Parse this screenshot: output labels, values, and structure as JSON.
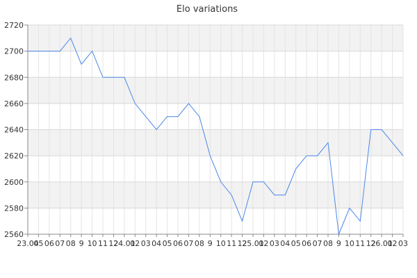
{
  "chart_data": {
    "type": "line",
    "title": "Elo variations",
    "xlabel": "",
    "ylabel": "",
    "ylim": [
      2560,
      2720
    ],
    "y_ticks": [
      2560,
      2580,
      2600,
      2620,
      2640,
      2660,
      2680,
      2700,
      2720
    ],
    "x_tick_labels": [
      "23.04",
      "05",
      "06",
      "07",
      "08",
      "9",
      "10",
      "11",
      "12",
      "24.01",
      "02",
      "03",
      "04",
      "05",
      "06",
      "07",
      "08",
      "9",
      "10",
      "11",
      "12",
      "25.01",
      "02",
      "03",
      "04",
      "05",
      "06",
      "07",
      "08",
      "9",
      "10",
      "11",
      "12",
      "26.01",
      "02",
      "03"
    ],
    "grid": true,
    "banded_background": true,
    "series": [
      {
        "color": "#4a86e8",
        "values": [
          2700,
          2700,
          2700,
          2700,
          2710,
          2690,
          2700,
          2680,
          2680,
          2680,
          2660,
          2650,
          2640,
          2650,
          2650,
          2660,
          2650,
          2620,
          2600,
          2590,
          2570,
          2600,
          2600,
          2590,
          2590,
          2610,
          2620,
          2620,
          2630,
          2560,
          2580,
          2570,
          2640,
          2640,
          2630,
          2620
        ]
      }
    ]
  }
}
